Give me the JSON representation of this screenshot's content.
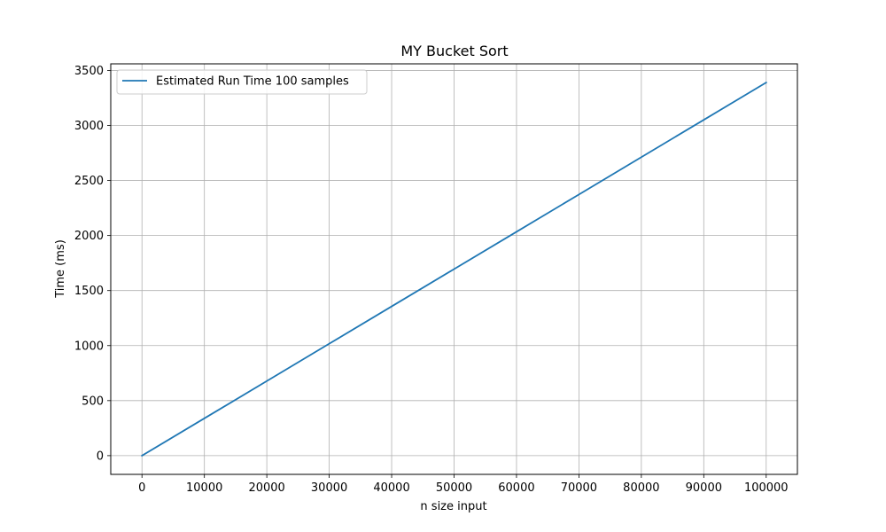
{
  "chart_data": {
    "type": "line",
    "title": "MY Bucket Sort",
    "xlabel": "n size input",
    "ylabel": "Time (ms)",
    "xlim": [
      -5000,
      105000
    ],
    "ylim": [
      -170,
      3560
    ],
    "xticks": [
      0,
      10000,
      20000,
      30000,
      40000,
      50000,
      60000,
      70000,
      80000,
      90000,
      100000
    ],
    "yticks": [
      0,
      500,
      1000,
      1500,
      2000,
      2500,
      3000,
      3500
    ],
    "grid": true,
    "legend_position": "top-left",
    "series": [
      {
        "name": "Estimated Run Time 100 samples",
        "color": "#1f77b4",
        "x": [
          0,
          10000,
          20000,
          30000,
          40000,
          50000,
          60000,
          70000,
          80000,
          90000,
          100000
        ],
        "y": [
          0,
          339,
          678,
          1017,
          1356,
          1695,
          2034,
          2373,
          2712,
          3051,
          3390
        ]
      }
    ]
  }
}
